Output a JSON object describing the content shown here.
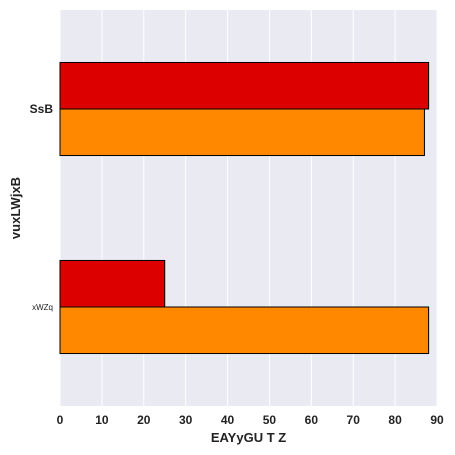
{
  "chart_data": {
    "type": "bar",
    "orientation": "horizontal",
    "categories": [
      "SsB",
      "xWZq"
    ],
    "series": [
      {
        "color": "#dd0000",
        "values": [
          88,
          25
        ]
      },
      {
        "color": "#ff8800",
        "values": [
          87,
          88
        ]
      }
    ],
    "title": "",
    "xlabel": "EAYyGU T Z",
    "ylabel": "vuxLWjxB",
    "xlim": [
      0,
      90
    ],
    "xticks": [
      0,
      10,
      20,
      30,
      40,
      50,
      60,
      70,
      80,
      90
    ],
    "xtick_labels": [
      "0",
      "10",
      "20",
      "30",
      "40",
      "50",
      "60",
      "70",
      "80",
      "90"
    ],
    "grid": true,
    "legend": "none",
    "background_color": "#e9eaf2",
    "grid_color": "#ffffff"
  }
}
